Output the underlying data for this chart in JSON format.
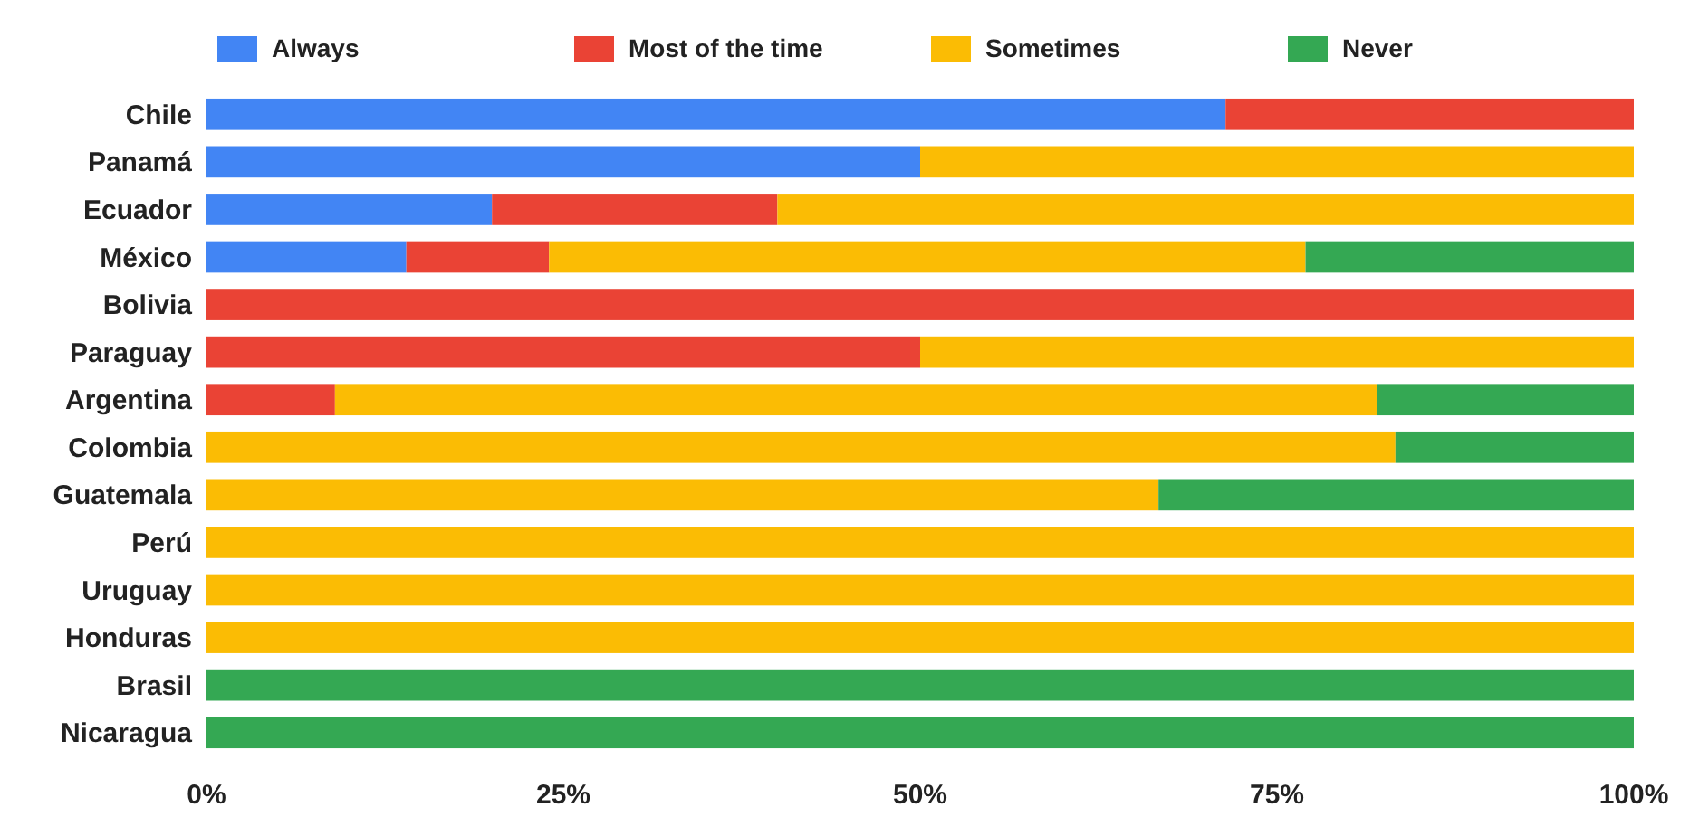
{
  "chart_data": {
    "type": "bar",
    "orientation": "horizontal",
    "stacked": true,
    "legend": "top",
    "categories": [
      "Chile",
      "Panamá",
      "Ecuador",
      "México",
      "Bolivia",
      "Paraguay",
      "Argentina",
      "Colombia",
      "Guatemala",
      "Perú",
      "Uruguay",
      "Honduras",
      "Brasil",
      "Nicaragua"
    ],
    "series": [
      {
        "name": "Always",
        "color": "#4285f4",
        "values": [
          71.4,
          50,
          20,
          14,
          0,
          0,
          0,
          0,
          0,
          0,
          0,
          0,
          0,
          0
        ]
      },
      {
        "name": "Most of the time",
        "color": "#ea4335",
        "values": [
          28.6,
          0,
          20,
          10,
          100,
          50,
          9,
          0,
          0,
          0,
          0,
          0,
          0,
          0
        ]
      },
      {
        "name": "Sometimes",
        "color": "#fbbc04",
        "values": [
          0,
          50,
          60,
          53,
          0,
          50,
          73,
          83.3,
          66.7,
          100,
          100,
          100,
          0,
          0
        ]
      },
      {
        "name": "Never",
        "color": "#34a853",
        "values": [
          0,
          0,
          0,
          23,
          0,
          0,
          18,
          16.7,
          33.3,
          0,
          0,
          0,
          100,
          100
        ]
      }
    ],
    "xlim": [
      0,
      100
    ],
    "xticks": [
      {
        "value": 0,
        "label": "0%"
      },
      {
        "value": 25,
        "label": "25%"
      },
      {
        "value": 50,
        "label": "50%"
      },
      {
        "value": 75,
        "label": "75%"
      },
      {
        "value": 100,
        "label": "100%"
      }
    ]
  }
}
